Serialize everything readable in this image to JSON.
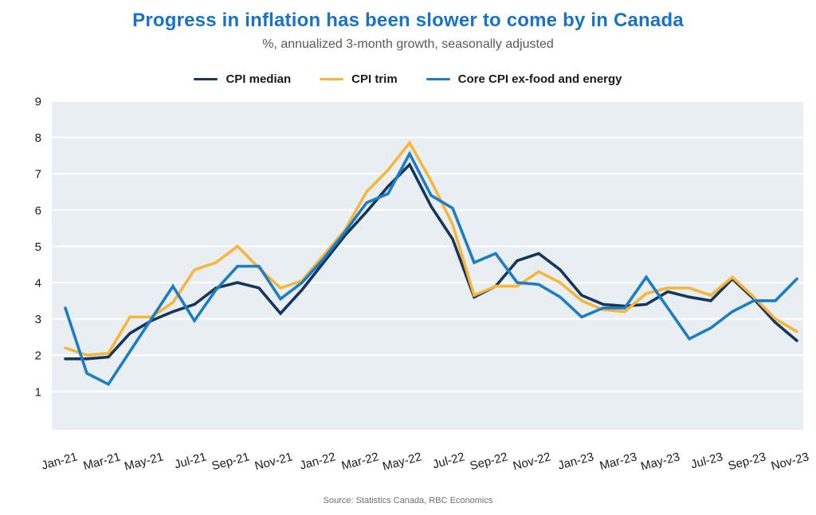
{
  "header": {
    "title": "Progress in inflation has been slower to come by in Canada",
    "subtitle": "%, annualized 3-month growth, seasonally adjusted"
  },
  "source_note": "Source: Statistics Canada, RBC Economics",
  "colors": {
    "title": "#1673c8",
    "subtitle": "#58595b",
    "plot_background": "#e9eef2",
    "gridline": "#ffffff",
    "axis_label": "#1a1a1a",
    "source_text": "#6f6f6f"
  },
  "chart_data": {
    "type": "line",
    "title": "Progress in inflation has been slower to come by in Canada",
    "subtitle": "%, annualized 3-month growth, seasonally adjusted",
    "xlabel": "",
    "ylabel": "",
    "ylim": [
      0,
      9
    ],
    "yticks": [
      1,
      2,
      3,
      4,
      5,
      6,
      7,
      8,
      9
    ],
    "grid": true,
    "legend_position": "top",
    "x": [
      "Jan-21",
      "Feb-21",
      "Mar-21",
      "Apr-21",
      "May-21",
      "Jun-21",
      "Jul-21",
      "Aug-21",
      "Sep-21",
      "Oct-21",
      "Nov-21",
      "Dec-21",
      "Jan-22",
      "Feb-22",
      "Mar-22",
      "Apr-22",
      "May-22",
      "Jun-22",
      "Jul-22",
      "Aug-22",
      "Sep-22",
      "Oct-22",
      "Nov-22",
      "Dec-22",
      "Jan-23",
      "Feb-23",
      "Mar-23",
      "Apr-23",
      "May-23",
      "Jun-23",
      "Jul-23",
      "Aug-23",
      "Sep-23",
      "Oct-23",
      "Nov-23"
    ],
    "x_tick_labels": [
      "Jan-21",
      "Mar-21",
      "May-21",
      "Jul-21",
      "Sep-21",
      "Nov-21",
      "Jan-22",
      "Mar-22",
      "May-22",
      "Jul-22",
      "Sep-22",
      "Nov-22",
      "Jan-23",
      "Mar-23",
      "May-23",
      "Jul-23",
      "Sep-23",
      "Nov-23"
    ],
    "series": [
      {
        "name": "CPI median",
        "color": "#17365c",
        "values": [
          1.9,
          1.9,
          1.95,
          2.6,
          2.95,
          3.2,
          3.4,
          3.85,
          4.0,
          3.85,
          3.15,
          3.8,
          4.55,
          5.3,
          5.95,
          6.65,
          7.25,
          6.1,
          5.2,
          3.6,
          3.9,
          4.6,
          4.8,
          4.35,
          3.65,
          3.4,
          3.35,
          3.4,
          3.75,
          3.6,
          3.5,
          4.1,
          3.55,
          2.9,
          2.4
        ]
      },
      {
        "name": "CPI trim",
        "color": "#f6b63c",
        "values": [
          2.2,
          2.0,
          2.05,
          3.05,
          3.05,
          3.45,
          4.35,
          4.55,
          5.0,
          4.4,
          3.85,
          4.05,
          4.75,
          5.45,
          6.5,
          7.1,
          7.85,
          6.8,
          5.6,
          3.65,
          3.9,
          3.9,
          4.3,
          4.0,
          3.5,
          3.25,
          3.2,
          3.7,
          3.85,
          3.85,
          3.65,
          4.15,
          3.6,
          3.0,
          2.65
        ]
      },
      {
        "name": "Core CPI ex-food and energy",
        "color": "#1d7dc4",
        "values": [
          3.3,
          1.5,
          1.2,
          2.1,
          3.0,
          3.9,
          2.95,
          3.8,
          4.45,
          4.45,
          3.55,
          4.0,
          4.65,
          5.4,
          6.2,
          6.45,
          7.55,
          6.4,
          6.05,
          4.55,
          4.8,
          4.0,
          3.95,
          3.6,
          3.05,
          3.3,
          3.3,
          4.15,
          3.3,
          2.45,
          2.75,
          3.2,
          3.5,
          3.5,
          4.1
        ]
      }
    ]
  }
}
